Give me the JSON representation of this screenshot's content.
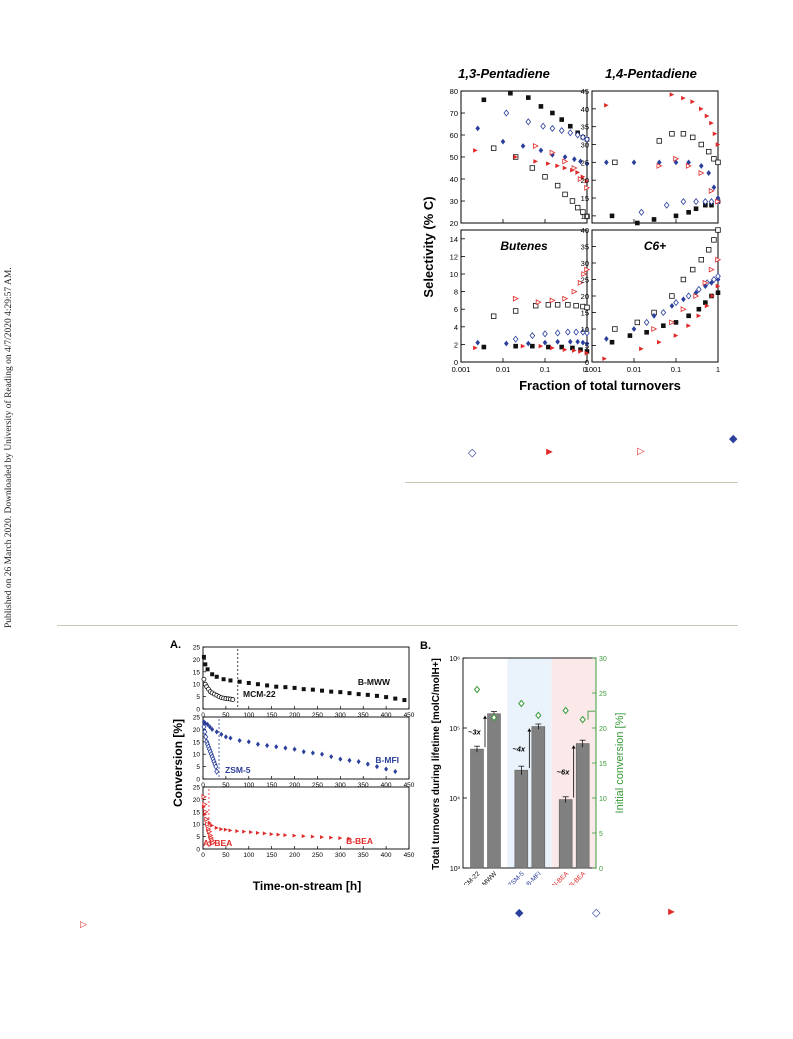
{
  "sidebar_note": "Published on 26 March 2020. Downloaded by University of Reading on 4/7/2020 4:29:57 AM.",
  "figure_top": {
    "shared_ylabel": "Selectivity (% C)",
    "shared_xlabel": "Fraction of total turnovers",
    "x_ticks": [
      "0.001",
      "0.01",
      "0.1",
      "1"
    ],
    "panels": [
      {
        "title": "1,3-Pentadiene",
        "y_ticks": [
          "20",
          "30",
          "40",
          "50",
          "60",
          "70",
          "80"
        ]
      },
      {
        "title": "1,4-Pentadiene",
        "y_ticks": [
          "10",
          "15",
          "20",
          "25",
          "30",
          "35",
          "40",
          "45"
        ]
      },
      {
        "title": "Butenes",
        "y_ticks": [
          "0",
          "2",
          "4",
          "6",
          "8",
          "10",
          "12",
          "14"
        ]
      },
      {
        "title": "C6+",
        "y_ticks": [
          "0",
          "5",
          "10",
          "15",
          "20",
          "25",
          "30",
          "35",
          "40"
        ]
      }
    ]
  },
  "figure_bottom": {
    "panel_a": {
      "label": "A.",
      "ylabel": "Conversion [%]",
      "xlabel": "Time-on-stream [h]",
      "x_ticks": [
        "0",
        "50",
        "100",
        "150",
        "200",
        "250",
        "300",
        "350",
        "400",
        "450"
      ],
      "y_ticks": [
        "0",
        "5",
        "10",
        "15",
        "20",
        "25"
      ],
      "subplots": [
        {
          "boron": "B-MWW",
          "aluminum": "MCM-22"
        },
        {
          "boron": "B-MFI",
          "aluminum": "ZSM-5"
        },
        {
          "boron": "B-BEA",
          "aluminum": "Al-BEA"
        }
      ]
    },
    "panel_b": {
      "label": "B.",
      "ylabel_left": "Total turnovers during lifetime [molC/molH+]",
      "ylabel_right": "Initial conversion [%]",
      "y_left_ticks": [
        "10³",
        "10⁴",
        "10⁵",
        "10⁶"
      ],
      "y_right_ticks": [
        "0",
        "5",
        "10",
        "15",
        "20",
        "25",
        "30"
      ],
      "categories": [
        "MCM-22",
        "B-MWW",
        "ZSM-5",
        "B-MFI",
        "Al-BEA",
        "B-BEA"
      ],
      "ratios": [
        "~3x",
        "~4x",
        "~6x"
      ]
    }
  },
  "caption_markers": {
    "top_row_1": [
      "◆"
    ],
    "top_row_2": [
      "◇",
      "►",
      "▷"
    ],
    "bottom_row": [
      "▷",
      "◆",
      "◇",
      "►"
    ]
  },
  "colors": {
    "black": "#111111",
    "blue": "#2b3f9c",
    "red": "#e02a2a",
    "green": "#3a9a3a",
    "bar": "#808080"
  },
  "chart_data": [
    {
      "type": "scatter",
      "title": "1,3-Pentadiene",
      "xscale": "log",
      "xlim": [
        0.001,
        1
      ],
      "ylim": [
        20,
        80
      ],
      "series": [
        {
          "marker": "filled-square-black",
          "x": [
            0.0035,
            0.015,
            0.04,
            0.08,
            0.15,
            0.25,
            0.4,
            0.6,
            0.8,
            1
          ],
          "y": [
            76,
            79,
            77,
            73,
            70,
            67,
            64,
            61,
            59,
            58
          ]
        },
        {
          "marker": "open-square-black",
          "x": [
            0.006,
            0.02,
            0.05,
            0.1,
            0.2,
            0.3,
            0.45,
            0.6,
            0.8,
            1
          ],
          "y": [
            54,
            50,
            45,
            41,
            37,
            33,
            30,
            27,
            25,
            23
          ]
        },
        {
          "marker": "filled-diamond-blue",
          "x": [
            0.0025,
            0.01,
            0.03,
            0.08,
            0.15,
            0.3,
            0.5,
            0.7,
            1
          ],
          "y": [
            63,
            57,
            55,
            53,
            51,
            50,
            49,
            48,
            47
          ]
        },
        {
          "marker": "open-diamond-blue",
          "x": [
            0.012,
            0.04,
            0.09,
            0.15,
            0.25,
            0.4,
            0.6,
            0.8,
            1
          ],
          "y": [
            70,
            66,
            64,
            63,
            62,
            61,
            60,
            59,
            58
          ]
        },
        {
          "marker": "filled-triangle-red",
          "x": [
            0.0022,
            0.02,
            0.06,
            0.12,
            0.2,
            0.3,
            0.45,
            0.6,
            0.8,
            1
          ],
          "y": [
            53,
            50,
            48,
            47,
            46,
            45,
            44,
            43,
            41,
            39
          ]
        },
        {
          "marker": "open-triangle-red",
          "x": [
            0.06,
            0.15,
            0.3,
            0.5,
            0.7,
            1
          ],
          "y": [
            55,
            52,
            48,
            45,
            40,
            36
          ]
        }
      ]
    },
    {
      "type": "scatter",
      "title": "1,4-Pentadiene",
      "xscale": "log",
      "xlim": [
        0.001,
        1
      ],
      "ylim": [
        8,
        45
      ],
      "series": [
        {
          "marker": "filled-square-black",
          "x": [
            0.003,
            0.012,
            0.03,
            0.1,
            0.2,
            0.3,
            0.5,
            0.7,
            1
          ],
          "y": [
            10,
            8,
            9,
            10,
            11,
            12,
            13,
            13,
            14
          ]
        },
        {
          "marker": "open-square-black",
          "x": [
            0.0035,
            0.04,
            0.08,
            0.15,
            0.25,
            0.4,
            0.6,
            0.8,
            1
          ],
          "y": [
            25,
            31,
            33,
            33,
            32,
            30,
            28,
            26,
            25
          ]
        },
        {
          "marker": "filled-diamond-blue",
          "x": [
            0.0022,
            0.01,
            0.04,
            0.1,
            0.2,
            0.4,
            0.6,
            0.8,
            1
          ],
          "y": [
            25,
            25,
            25,
            25,
            25,
            24,
            22,
            18,
            15
          ]
        },
        {
          "marker": "open-diamond-blue",
          "x": [
            0.015,
            0.06,
            0.15,
            0.3,
            0.5,
            0.7,
            1
          ],
          "y": [
            11,
            13,
            14,
            14,
            14,
            14,
            14
          ]
        },
        {
          "marker": "filled-triangle-red",
          "x": [
            0.0022,
            0.08,
            0.15,
            0.25,
            0.4,
            0.55,
            0.7,
            0.85,
            1
          ],
          "y": [
            41,
            44,
            43,
            42,
            40,
            38,
            36,
            33,
            30
          ]
        },
        {
          "marker": "open-triangle-red",
          "x": [
            0.04,
            0.1,
            0.2,
            0.4,
            0.7,
            1
          ],
          "y": [
            24,
            26,
            24,
            22,
            17,
            14
          ]
        }
      ]
    },
    {
      "type": "scatter",
      "title": "Butenes",
      "xscale": "log",
      "xlim": [
        0.001,
        1
      ],
      "ylim": [
        0,
        15
      ],
      "series": [
        {
          "marker": "filled-square-black",
          "x": [
            0.0035,
            0.02,
            0.05,
            0.12,
            0.25,
            0.45,
            0.7,
            1
          ],
          "y": [
            1.7,
            1.8,
            1.8,
            1.7,
            1.7,
            1.6,
            1.4,
            1.2
          ]
        },
        {
          "marker": "open-square-black",
          "x": [
            0.006,
            0.02,
            0.06,
            0.12,
            0.2,
            0.35,
            0.55,
            0.8,
            1
          ],
          "y": [
            5.2,
            5.8,
            6.4,
            6.5,
            6.5,
            6.5,
            6.4,
            6.3,
            6.2
          ]
        },
        {
          "marker": "filled-diamond-blue",
          "x": [
            0.0025,
            0.012,
            0.04,
            0.1,
            0.2,
            0.4,
            0.6,
            0.8,
            1
          ],
          "y": [
            2.2,
            2.1,
            2.1,
            2.2,
            2.3,
            2.3,
            2.3,
            2.2,
            2.1
          ]
        },
        {
          "marker": "open-diamond-blue",
          "x": [
            0.02,
            0.05,
            0.1,
            0.2,
            0.35,
            0.55,
            0.8,
            1
          ],
          "y": [
            2.6,
            3.0,
            3.2,
            3.3,
            3.4,
            3.4,
            3.4,
            3.3
          ]
        },
        {
          "marker": "filled-triangle-red",
          "x": [
            0.0022,
            0.03,
            0.08,
            0.15,
            0.3,
            0.5,
            0.7,
            1
          ],
          "y": [
            1.6,
            1.8,
            1.8,
            1.6,
            1.4,
            1.3,
            1.2,
            1.0
          ]
        },
        {
          "marker": "open-triangle-red",
          "x": [
            0.02,
            0.07,
            0.15,
            0.3,
            0.5,
            0.7,
            0.85,
            1
          ],
          "y": [
            7.2,
            6.8,
            7.0,
            7.2,
            8,
            9,
            10,
            10.5
          ]
        }
      ]
    },
    {
      "type": "scatter",
      "title": "C6+",
      "xscale": "log",
      "xlim": [
        0.001,
        1
      ],
      "ylim": [
        0,
        40
      ],
      "series": [
        {
          "marker": "filled-square-black",
          "x": [
            0.003,
            0.008,
            0.02,
            0.05,
            0.1,
            0.2,
            0.35,
            0.5,
            0.7,
            1
          ],
          "y": [
            6,
            8,
            9,
            11,
            12,
            14,
            16,
            18,
            20,
            21
          ]
        },
        {
          "marker": "open-square-black",
          "x": [
            0.0035,
            0.012,
            0.03,
            0.08,
            0.15,
            0.25,
            0.4,
            0.6,
            0.8,
            1
          ],
          "y": [
            10,
            12,
            15,
            20,
            25,
            28,
            31,
            34,
            37,
            40
          ]
        },
        {
          "marker": "filled-diamond-blue",
          "x": [
            0.0022,
            0.01,
            0.03,
            0.08,
            0.15,
            0.3,
            0.5,
            0.7,
            1
          ],
          "y": [
            7,
            10,
            14,
            17,
            19,
            21,
            23,
            24,
            25
          ]
        },
        {
          "marker": "open-diamond-blue",
          "x": [
            0.02,
            0.05,
            0.1,
            0.2,
            0.35,
            0.55,
            0.8,
            1
          ],
          "y": [
            12,
            15,
            18,
            20,
            22,
            24,
            25,
            26
          ]
        },
        {
          "marker": "filled-triangle-red",
          "x": [
            0.002,
            0.015,
            0.04,
            0.1,
            0.2,
            0.35,
            0.55,
            0.75,
            1
          ],
          "y": [
            1,
            4,
            6,
            8,
            11,
            14,
            17,
            20,
            23
          ]
        },
        {
          "marker": "open-triangle-red",
          "x": [
            0.03,
            0.08,
            0.15,
            0.3,
            0.5,
            0.7,
            1
          ],
          "y": [
            10,
            12,
            16,
            20,
            24,
            28,
            31
          ]
        }
      ]
    },
    {
      "type": "scatter",
      "title": "",
      "xlim": [
        0,
        450
      ],
      "ylim": [
        0,
        25
      ],
      "series": [
        {
          "name": "B-MWW",
          "marker": "filled-square-black",
          "x": [
            2,
            5,
            10,
            20,
            30,
            45,
            60,
            80,
            100,
            120,
            140,
            160,
            180,
            200,
            220,
            240,
            260,
            280,
            300,
            320,
            340,
            360,
            380,
            400,
            420,
            440
          ],
          "y": [
            21,
            18,
            16,
            14,
            13,
            12,
            11.5,
            11,
            10.5,
            10,
            9.5,
            9,
            8.8,
            8.5,
            8,
            7.8,
            7.4,
            7,
            6.8,
            6.4,
            6,
            5.7,
            5.3,
            4.8,
            4.2,
            3.6
          ]
        },
        {
          "name": "MCM-22",
          "marker": "open-circle-black",
          "x": [
            2,
            5,
            8,
            12,
            16,
            20,
            25,
            30,
            35,
            40,
            45,
            50,
            55,
            60,
            65
          ],
          "y": [
            12,
            10,
            9,
            8,
            7,
            6.5,
            6,
            5.5,
            5,
            4.6,
            4.4,
            4.2,
            4.1,
            4,
            3.8
          ]
        }
      ]
    },
    {
      "type": "scatter",
      "title": "",
      "xlim": [
        0,
        450
      ],
      "ylim": [
        0,
        25
      ],
      "series": [
        {
          "name": "B-MFI",
          "marker": "filled-diamond-blue",
          "x": [
            2,
            5,
            10,
            15,
            20,
            30,
            40,
            50,
            60,
            80,
            100,
            120,
            140,
            160,
            180,
            200,
            220,
            240,
            260,
            280,
            300,
            320,
            340,
            360,
            380,
            400,
            420
          ],
          "y": [
            23,
            22.5,
            22,
            21,
            20,
            19,
            18,
            17,
            16.5,
            15.5,
            15,
            14,
            13.5,
            13,
            12.5,
            12,
            11,
            10.5,
            10,
            9,
            8,
            7.5,
            7,
            6,
            5,
            4,
            3
          ]
        },
        {
          "name": "ZSM-5",
          "marker": "open-diamond-blue",
          "x": [
            2,
            4,
            6,
            8,
            10,
            12,
            14,
            16,
            18,
            20,
            22,
            24,
            26,
            28,
            30
          ],
          "y": [
            21,
            19,
            17,
            15,
            14,
            13,
            12,
            11,
            10,
            9,
            8,
            7,
            6,
            5,
            3
          ]
        }
      ]
    },
    {
      "type": "scatter",
      "title": "",
      "xlim": [
        0,
        450
      ],
      "ylim": [
        0,
        25
      ],
      "series": [
        {
          "name": "B-BEA",
          "marker": "filled-triangle-red",
          "x": [
            2,
            5,
            10,
            15,
            20,
            30,
            40,
            50,
            60,
            75,
            90,
            105,
            120,
            135,
            150,
            165,
            180,
            200,
            220,
            240,
            260,
            280,
            300,
            320
          ],
          "y": [
            17,
            14,
            12,
            10.5,
            9.5,
            8.5,
            8,
            7.8,
            7.5,
            7.2,
            7,
            6.8,
            6.5,
            6.3,
            6,
            5.8,
            5.6,
            5.4,
            5.2,
            5,
            4.8,
            4.6,
            4.4,
            4.2
          ]
        },
        {
          "name": "Al-BEA",
          "marker": "open-triangle-red",
          "x": [
            2,
            4,
            6,
            8,
            10,
            12,
            14,
            16,
            18,
            20,
            22
          ],
          "y": [
            21,
            18,
            15,
            12,
            10,
            8,
            7,
            5.5,
            4.5,
            3.5,
            2.5
          ]
        }
      ]
    },
    {
      "type": "bar",
      "title": "",
      "categories": [
        "MCM-22",
        "B-MWW",
        "ZSM-5",
        "B-MFI",
        "Al-BEA",
        "B-BEA"
      ],
      "yscale": "log",
      "ylim": [
        1000,
        1000000
      ],
      "series": [
        {
          "name": "Total turnovers",
          "values": [
            50000,
            160000,
            25000,
            105000,
            9500,
            60000
          ],
          "errors": [
            5000,
            12000,
            3500,
            9000,
            900,
            7000
          ]
        },
        {
          "name": "Initial conversion [%]",
          "axis": "right",
          "ylim": [
            0,
            30
          ],
          "marker": "open-diamond-green",
          "values": [
            25.5,
            21.5,
            23.5,
            21.8,
            22.5,
            21.2
          ]
        }
      ]
    }
  ]
}
